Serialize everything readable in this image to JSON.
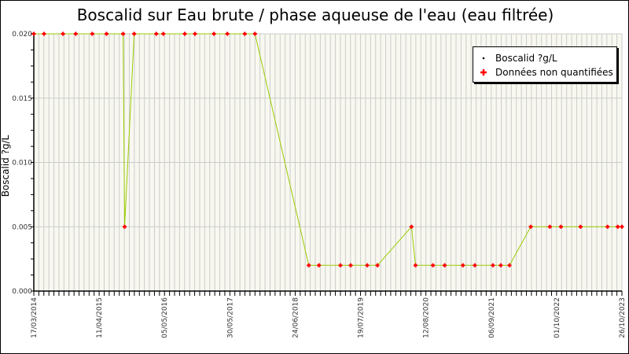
{
  "chart_data": {
    "type": "line",
    "title": "Boscalid sur Eau brute / phase aqueuse de l'eau (eau filtrée)",
    "ylabel": "Boscalid ?g/L",
    "xlabel": "",
    "ylim": [
      0,
      0.02
    ],
    "xlim": [
      "2014-03-17",
      "2023-10-26"
    ],
    "yticks": [
      "0.000",
      "0.005",
      "0.010",
      "0.015",
      "0.020"
    ],
    "xticks": [
      "17/03/2014",
      "11/04/2015",
      "05/05/2016",
      "30/05/2017",
      "24/06/2018",
      "19/07/2019",
      "12/08/2020",
      "06/09/2021",
      "01/10/2022",
      "26/10/2023"
    ],
    "grid": true,
    "legend_placement": "top-right",
    "legend": [
      "Boscalid ?g/L",
      "Données non quantifiées"
    ],
    "colors": {
      "line": "#99cc00",
      "marker": "#ff0000",
      "plot_bg": "#f8f8f0",
      "grid": "#cccccc"
    },
    "points": [
      [
        "2014-03-17",
        0.02
      ],
      [
        "2014-05-17",
        0.02
      ],
      [
        "2014-09-07",
        0.02
      ],
      [
        "2014-11-22",
        0.02
      ],
      [
        "2015-03-01",
        0.02
      ],
      [
        "2015-05-25",
        0.02
      ],
      [
        "2015-09-01",
        0.02
      ],
      [
        "2015-09-10",
        0.005
      ],
      [
        "2015-11-06",
        0.02
      ],
      [
        "2016-03-17",
        0.02
      ],
      [
        "2016-04-28",
        0.02
      ],
      [
        "2016-09-03",
        0.02
      ],
      [
        "2016-11-03",
        0.02
      ],
      [
        "2017-02-24",
        0.02
      ],
      [
        "2017-05-15",
        0.02
      ],
      [
        "2017-08-27",
        0.02
      ],
      [
        "2017-10-27",
        0.02
      ],
      [
        "2018-09-13",
        0.002
      ],
      [
        "2018-11-13",
        0.002
      ],
      [
        "2019-03-21",
        0.002
      ],
      [
        "2019-05-21",
        0.002
      ],
      [
        "2019-08-28",
        0.002
      ],
      [
        "2019-10-28",
        0.002
      ],
      [
        "2020-05-18",
        0.005
      ],
      [
        "2020-06-11",
        0.002
      ],
      [
        "2020-09-23",
        0.002
      ],
      [
        "2020-12-02",
        0.002
      ],
      [
        "2021-03-21",
        0.002
      ],
      [
        "2021-05-31",
        0.002
      ],
      [
        "2021-09-16",
        0.002
      ],
      [
        "2021-11-02",
        0.002
      ],
      [
        "2021-12-24",
        0.002
      ],
      [
        "2022-04-30",
        0.005
      ],
      [
        "2022-08-22",
        0.005
      ],
      [
        "2022-10-27",
        0.005
      ],
      [
        "2023-02-21",
        0.005
      ],
      [
        "2023-08-01",
        0.005
      ],
      [
        "2023-10-01",
        0.005
      ],
      [
        "2023-10-26",
        0.005
      ]
    ]
  }
}
